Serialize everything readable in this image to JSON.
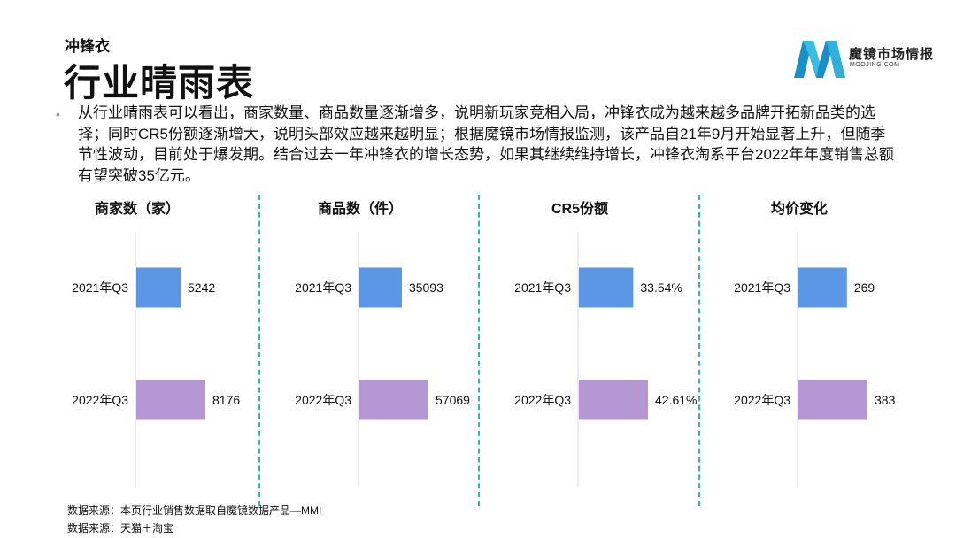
{
  "header": {
    "kicker": "冲锋衣",
    "title": "行业晴雨表"
  },
  "brand": {
    "name": "魔镜市场情报",
    "url_text": "MOOJING.COM",
    "colors": {
      "logo_dark": "#1a8fc7",
      "logo_light": "#3fc6e6"
    }
  },
  "summary": "从行业晴雨表可以看出，商家数量、商品数量逐渐增多，说明新玩家竞相入局，冲锋衣成为越来越多品牌开拓新品类的选择；同时CR5份额逐渐增大，说明头部效应越来越明显；根据魔镜市场情报监测，该产品自21年9月开始显著上升，但随季节性波动，目前处于爆发期。结合过去一年冲锋衣的增长态势，如果其继续维持增长，冲锋衣淘系平台2022年年度销售总额有望突破35亿元。",
  "colors": {
    "bar_2021": "#5b97e5",
    "bar_2022": "#b597d3",
    "divider": "#2cbf9a"
  },
  "chart_data": [
    {
      "type": "bar",
      "orientation": "horizontal",
      "title": "商家数（家）",
      "categories": [
        "2021年Q3",
        "2022年Q3"
      ],
      "values": [
        5242,
        8176
      ],
      "labels": [
        "5242",
        "8176"
      ]
    },
    {
      "type": "bar",
      "orientation": "horizontal",
      "title": "商品数（件）",
      "categories": [
        "2021年Q3",
        "2022年Q3"
      ],
      "values": [
        35093,
        57069
      ],
      "labels": [
        "35093",
        "57069"
      ]
    },
    {
      "type": "bar",
      "orientation": "horizontal",
      "title": "CR5份额",
      "categories": [
        "2021年Q3",
        "2022年Q3"
      ],
      "values": [
        33.54,
        42.61
      ],
      "labels": [
        "33.54%",
        "42.61%"
      ]
    },
    {
      "type": "bar",
      "orientation": "horizontal",
      "title": "均价变化",
      "categories": [
        "2021年Q3",
        "2022年Q3"
      ],
      "values": [
        269,
        383
      ],
      "labels": [
        "269",
        "383"
      ]
    }
  ],
  "footer": {
    "source1": "数据来源：本页行业销售数据取自魔镜数据产品—MMI",
    "source2": "数据来源：天猫＋淘宝"
  }
}
